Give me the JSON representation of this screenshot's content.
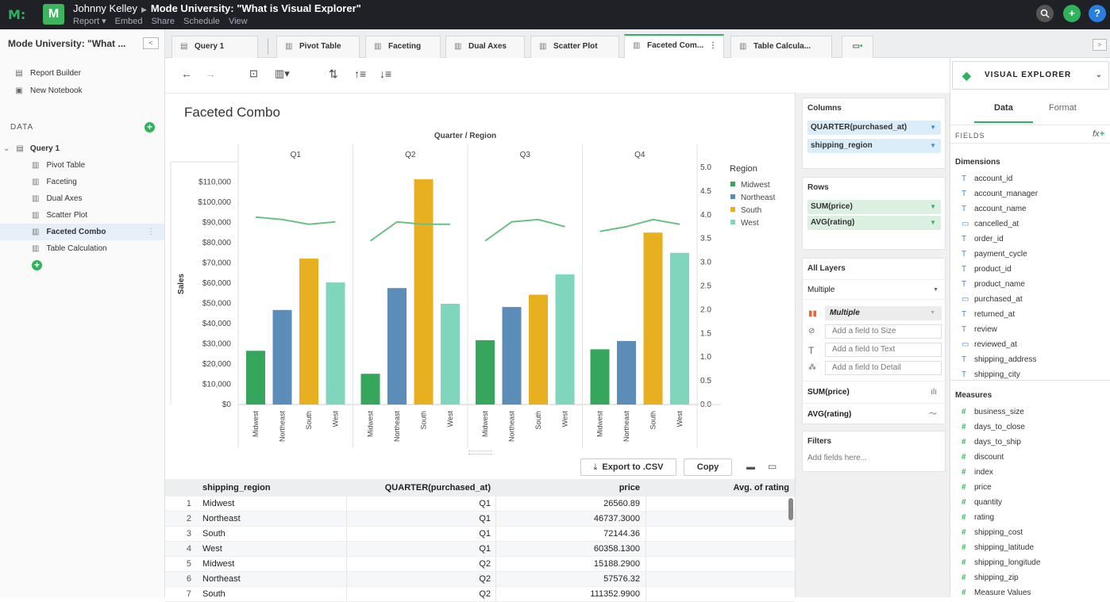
{
  "header": {
    "user": "Johnny Kelley",
    "report_title": "Mode University: \"What is Visual Explorer\"",
    "menu": [
      "Report ▾",
      "Embed",
      "Share",
      "Schedule",
      "View"
    ],
    "logo_letter": "M",
    "icons": [
      "search-icon",
      "add-icon",
      "help-icon"
    ],
    "help_label": "?",
    "add_label": "+",
    "accent": "#2fb35a"
  },
  "sidebar": {
    "title": "Mode University: \"What ...",
    "items": [
      "Report Builder",
      "New Notebook"
    ],
    "data_heading": "DATA",
    "query": "Query 1",
    "queries": [
      "Pivot Table",
      "Faceting",
      "Dual Axes",
      "Scatter Plot",
      "Faceted Combo",
      "Table Calculation"
    ],
    "selected": "Faceted Combo"
  },
  "tabs": [
    "Query 1",
    "Pivot Table",
    "Faceting",
    "Dual Axes",
    "Scatter Plot",
    "Faceted Com...",
    "Table Calcula..."
  ],
  "chart_data": {
    "type": "bar",
    "title": "Faceted Combo",
    "facet_label": "Quarter / Region",
    "facets": [
      "Q1",
      "Q2",
      "Q3",
      "Q4"
    ],
    "categories": [
      "Midwest",
      "Northeast",
      "South",
      "West"
    ],
    "ylabel": "Sales",
    "ylim": [
      0,
      120000
    ],
    "y_ticks": [
      "$0",
      "$10,000",
      "$20,000",
      "$30,000",
      "$40,000",
      "$50,000",
      "$60,000",
      "$70,000",
      "$80,000",
      "$90,000",
      "$100,000",
      "$110,000"
    ],
    "y2lim": [
      0,
      5.0
    ],
    "y2_ticks": [
      "0.0",
      "0.5",
      "1.0",
      "1.5",
      "2.0",
      "2.5",
      "3.0",
      "3.5",
      "4.0",
      "4.5",
      "5.0"
    ],
    "series": [
      {
        "name": "SUM(price)",
        "type": "bar",
        "values": [
          [
            26561,
            46737,
            72144,
            60358
          ],
          [
            15188,
            57576,
            111353,
            49800
          ],
          [
            31800,
            48200,
            54300,
            64300
          ],
          [
            27300,
            31400,
            85000,
            75000
          ]
        ]
      },
      {
        "name": "AVG(rating)",
        "type": "line",
        "values": [
          [
            3.95,
            3.9,
            3.8,
            3.85
          ],
          [
            3.45,
            3.85,
            3.8,
            3.8
          ],
          [
            3.45,
            3.85,
            3.9,
            3.75
          ],
          [
            3.65,
            3.75,
            3.9,
            3.8
          ]
        ]
      }
    ],
    "legend_title": "Region",
    "legend": [
      "Midwest",
      "Northeast",
      "South",
      "West"
    ],
    "colors": [
      "#35a65c",
      "#5b8db8",
      "#e8b020",
      "#7fd6bd"
    ],
    "line_color": "#6cbf84",
    "legend_position": "right",
    "grid": false
  },
  "actions": {
    "export_label": "Export to .CSV",
    "copy_label": "Copy"
  },
  "table": {
    "headers": [
      "shipping_region",
      "QUARTER(purchased_at)",
      "price",
      "Avg. of rating"
    ],
    "rows": [
      [
        "1",
        "Midwest",
        "Q1",
        "26560.89",
        ""
      ],
      [
        "2",
        "Northeast",
        "Q1",
        "46737.3000",
        ""
      ],
      [
        "3",
        "South",
        "Q1",
        "72144.36",
        ""
      ],
      [
        "4",
        "West",
        "Q1",
        "60358.1300",
        ""
      ],
      [
        "5",
        "Midwest",
        "Q2",
        "15188.2900",
        ""
      ],
      [
        "6",
        "Northeast",
        "Q2",
        "57576.32",
        ""
      ],
      [
        "7",
        "South",
        "Q2",
        "111352.9900",
        ""
      ]
    ]
  },
  "shelves": {
    "columns_title": "Columns",
    "columns": [
      "QUARTER(purchased_at)",
      "shipping_region"
    ],
    "rows_title": "Rows",
    "rows": [
      "SUM(price)",
      "AVG(rating)"
    ],
    "layers_title": "All Layers",
    "layers_value": "Multiple",
    "mark_value": "Multiple",
    "size_placeholder": "Add a field to Size",
    "text_placeholder": "Add a field to Text",
    "detail_placeholder": "Add a field to Detail",
    "layer1": "SUM(price)",
    "layer2": "AVG(rating)",
    "filters_title": "Filters",
    "filters_placeholder": "Add fields here..."
  },
  "explorer": {
    "title": "VISUAL EXPLORER",
    "tab_data": "Data",
    "tab_format": "Format",
    "fields_heading": "FIELDS",
    "fx_label": "fx",
    "dimensions_heading": "Dimensions",
    "dimensions": [
      "account_id",
      "account_manager",
      "account_name",
      "cancelled_at",
      "order_id",
      "payment_cycle",
      "product_id",
      "product_name",
      "purchased_at",
      "returned_at",
      "review",
      "reviewed_at",
      "shipping_address",
      "shipping_city"
    ],
    "dimension_types": [
      "T",
      "T",
      "T",
      "D",
      "T",
      "T",
      "T",
      "T",
      "D",
      "T",
      "T",
      "D",
      "T",
      "T"
    ],
    "measures_heading": "Measures",
    "measures": [
      "business_size",
      "days_to_close",
      "days_to_ship",
      "discount",
      "index",
      "price",
      "quantity",
      "rating",
      "shipping_cost",
      "shipping_latitude",
      "shipping_longitude",
      "shipping_zip",
      "Measure Values"
    ]
  }
}
